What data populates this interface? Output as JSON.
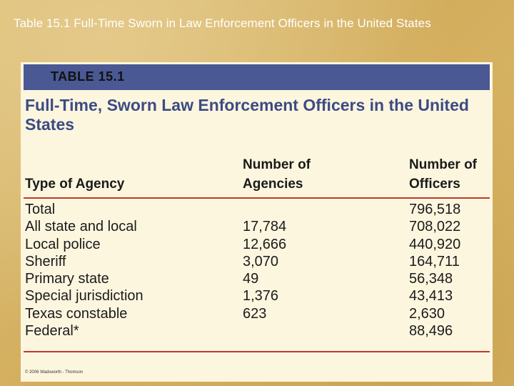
{
  "slide": {
    "title": "Table 15.1 Full-Time Sworn in Law Enforcement Officers in the United States"
  },
  "table": {
    "number": "TABLE 15.1",
    "title": "Full-Time, Sworn Law Enforcement Officers in the United States",
    "columns": {
      "type": "Type of Agency",
      "agencies": "Number of Agencies",
      "officers": "Number of Officers"
    },
    "rows": [
      {
        "type": "Total",
        "agencies": "",
        "officers": "796,518"
      },
      {
        "type": "All state and local",
        "agencies": "17,784",
        "officers": "708,022"
      },
      {
        "type": "Local police",
        "agencies": "12,666",
        "officers": "440,920"
      },
      {
        "type": "Sheriff",
        "agencies": "3,070",
        "officers": "164,711"
      },
      {
        "type": "Primary state",
        "agencies": "49",
        "officers": "56,348"
      },
      {
        "type": "Special jurisdiction",
        "agencies": "1,376",
        "officers": "43,413"
      },
      {
        "type": "Texas constable",
        "agencies": "623",
        "officers": "2,630"
      },
      {
        "type": "Federal*",
        "agencies": "",
        "officers": "88,496"
      }
    ],
    "copyright": "© 2006 Wadsworth - Thomson"
  },
  "colors": {
    "background": "#d9b86a",
    "panel": "#fdf6df",
    "header_bar": "#4a5894",
    "title_text": "#3c4b84",
    "rule": "#c0392b"
  }
}
